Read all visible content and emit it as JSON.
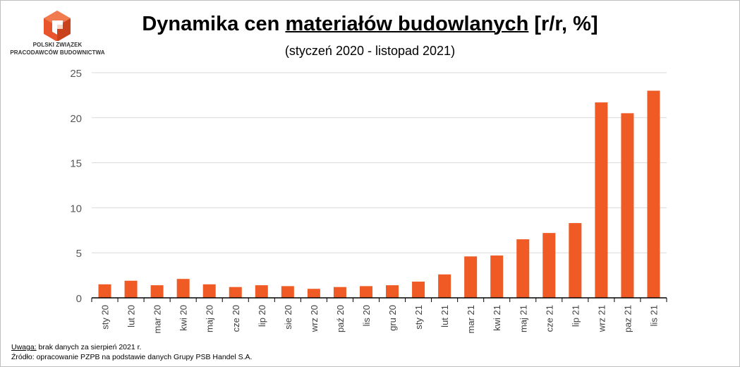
{
  "logo": {
    "line1": "POLSKI ZWIĄZEK",
    "line2": "PRACODAWCÓW BUDOWNICTWA"
  },
  "title": {
    "prefix": "Dynamika cen ",
    "underlined": "materiałów budowlanych",
    "suffix": " [r/r, %]"
  },
  "subtitle": "(styczeń 2020 - listopad 2021)",
  "notes": {
    "note_label": "Uwaga:",
    "note_text": " brak danych za sierpień 2021 r.",
    "source": "Źródło: opracowanie PZPB na podstawie danych Grupy PSB Handel S.A."
  },
  "colors": {
    "bar": "#f05a24",
    "grid": "#d9d9d9",
    "logo": "#e8542c"
  },
  "chart_data": {
    "type": "bar",
    "categories": [
      "sty 20",
      "lut 20",
      "mar 20",
      "kwi 20",
      "maj 20",
      "cze 20",
      "lip 20",
      "sie 20",
      "wrz 20",
      "paź 20",
      "lis 20",
      "gru 20",
      "sty 21",
      "lut 21",
      "mar 21",
      "kwi 21",
      "maj 21",
      "cze 21",
      "lip 21",
      "wrz 21",
      "paz 21",
      "lis 21"
    ],
    "values": [
      1.5,
      1.9,
      1.4,
      2.1,
      1.5,
      1.2,
      1.4,
      1.3,
      1.0,
      1.2,
      1.3,
      1.4,
      1.8,
      2.6,
      4.6,
      4.7,
      6.5,
      7.2,
      8.3,
      21.7,
      20.5,
      23.0
    ],
    "yticks": [
      "0",
      "5",
      "10",
      "15",
      "20",
      "25"
    ],
    "ylim": [
      0,
      25
    ],
    "grid": true,
    "legend": "none"
  }
}
